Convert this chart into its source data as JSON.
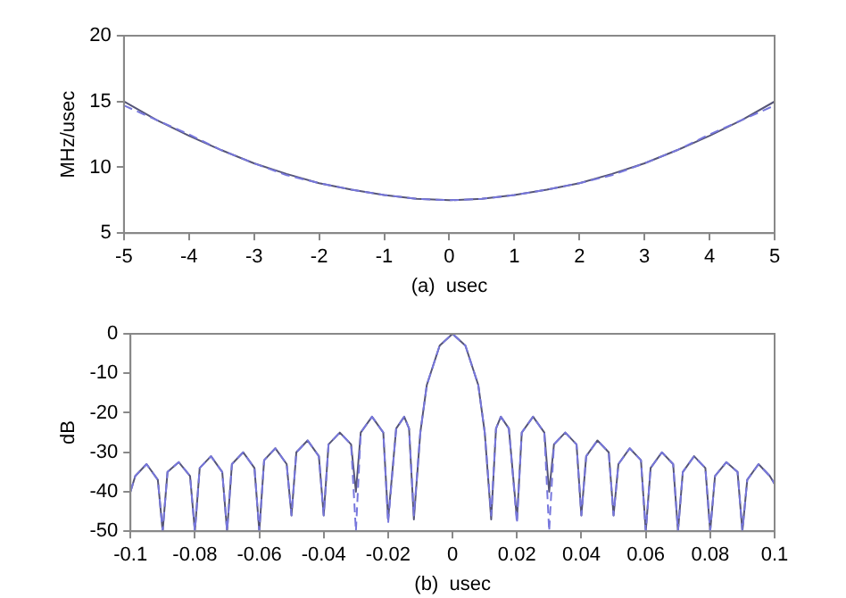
{
  "chart_data": [
    {
      "type": "line",
      "xlabel": "(a)  usec",
      "ylabel": "MHz/usec",
      "x": [
        -5,
        -4.5,
        -4,
        -3.5,
        -3,
        -2.5,
        -2,
        -1.5,
        -1,
        -0.5,
        0,
        0.5,
        1,
        1.5,
        2,
        2.5,
        3,
        3.5,
        4,
        4.5,
        5
      ],
      "xlim": [
        -5,
        5
      ],
      "xticks": [
        -5,
        -4,
        -3,
        -2,
        -1,
        0,
        1,
        2,
        3,
        4,
        5
      ],
      "ylim": [
        5,
        20
      ],
      "yticks": [
        5,
        10,
        15,
        20
      ],
      "grid": false,
      "legend": false,
      "marker": "none",
      "series": [
        {
          "color": "#555577",
          "line_style": "solid",
          "values": [
            15,
            13.6,
            12.4,
            11.3,
            10.3,
            9.5,
            8.8,
            8.3,
            7.9,
            7.6,
            7.5,
            7.6,
            7.9,
            8.3,
            8.8,
            9.5,
            10.3,
            11.3,
            12.4,
            13.6,
            15
          ]
        },
        {
          "color": "#7777dd",
          "line_style": "dashed",
          "values": [
            14.7,
            13.6,
            12.5,
            11.3,
            10.3,
            9.4,
            8.8,
            8.3,
            7.9,
            7.6,
            7.5,
            7.6,
            7.9,
            8.3,
            8.8,
            9.4,
            10.3,
            11.3,
            12.5,
            13.6,
            14.7
          ]
        }
      ]
    },
    {
      "type": "line",
      "xlabel": "(b)  usec",
      "ylabel": "dB",
      "x": [
        -0.1,
        -0.0985,
        -0.095,
        -0.0915,
        -0.09,
        -0.0885,
        -0.085,
        -0.0815,
        -0.08,
        -0.0785,
        -0.075,
        -0.0715,
        -0.07,
        -0.0685,
        -0.065,
        -0.0615,
        -0.06,
        -0.0585,
        -0.055,
        -0.0515,
        -0.05,
        -0.0485,
        -0.045,
        -0.0415,
        -0.04,
        -0.0385,
        -0.035,
        -0.0315,
        -0.03,
        -0.0285,
        -0.025,
        -0.0215,
        -0.02,
        -0.0175,
        -0.015,
        -0.0135,
        -0.012,
        -0.01,
        -0.008,
        -0.004,
        0,
        0.004,
        0.008,
        0.01,
        0.012,
        0.0135,
        0.015,
        0.0175,
        0.02,
        0.0215,
        0.025,
        0.0285,
        0.03,
        0.0315,
        0.035,
        0.0385,
        0.04,
        0.0415,
        0.045,
        0.0485,
        0.05,
        0.0515,
        0.055,
        0.0585,
        0.06,
        0.0615,
        0.065,
        0.0685,
        0.07,
        0.0715,
        0.075,
        0.0785,
        0.08,
        0.0815,
        0.085,
        0.0885,
        0.09,
        0.0915,
        0.095,
        0.0985,
        0.1
      ],
      "xlim": [
        -0.1,
        0.1
      ],
      "xticks": [
        -0.1,
        -0.08,
        -0.06,
        -0.04,
        -0.02,
        0,
        0.02,
        0.04,
        0.06,
        0.08,
        0.1
      ],
      "ylim": [
        -50,
        0
      ],
      "yticks": [
        -50,
        -40,
        -30,
        -20,
        -10,
        0
      ],
      "grid": false,
      "legend": false,
      "marker": "none",
      "series": [
        {
          "color": "#555577",
          "line_style": "solid",
          "values": [
            -40,
            -36,
            -33,
            -37,
            -50,
            -35,
            -32.5,
            -36,
            -50,
            -34,
            -31,
            -35,
            -50,
            -33,
            -30,
            -34,
            -50,
            -32,
            -29,
            -33,
            -46,
            -30,
            -27,
            -31,
            -46,
            -28,
            -25,
            -28,
            -40,
            -25,
            -21,
            -25,
            -47,
            -24,
            -21,
            -24,
            -47,
            -25,
            -13,
            -3,
            0,
            -3,
            -13,
            -25,
            -47,
            -24,
            -21,
            -24,
            -47,
            -25,
            -21,
            -25,
            -40,
            -28,
            -25,
            -28,
            -46,
            -31,
            -27,
            -30,
            -46,
            -33,
            -29,
            -32,
            -50,
            -34,
            -30,
            -33,
            -50,
            -35,
            -31,
            -34,
            -50,
            -36,
            -32.5,
            -35,
            -50,
            -37,
            -33,
            -36,
            -38
          ]
        },
        {
          "color": "#7777dd",
          "line_style": "dashed",
          "values": [
            -40,
            -36,
            -33,
            -37,
            -50,
            -35,
            -32.5,
            -36,
            -50,
            -34,
            -31,
            -35,
            -50,
            -33,
            -30,
            -34,
            -50,
            -32,
            -29,
            -33,
            -46,
            -30,
            -27,
            -31,
            -46,
            -28,
            -25,
            -28,
            -50,
            -25,
            -21,
            -25,
            -48,
            -24,
            -21,
            -24,
            -46,
            -25,
            -13,
            -3,
            0,
            -3,
            -13,
            -25,
            -46,
            -24,
            -21,
            -24,
            -48,
            -25,
            -21,
            -25,
            -50,
            -28,
            -25,
            -28,
            -46,
            -31,
            -27,
            -30,
            -46,
            -33,
            -29,
            -32,
            -50,
            -34,
            -30,
            -33,
            -50,
            -35,
            -31,
            -34,
            -50,
            -36,
            -32.5,
            -35,
            -50,
            -37,
            -33,
            -36,
            -38
          ]
        }
      ]
    }
  ]
}
